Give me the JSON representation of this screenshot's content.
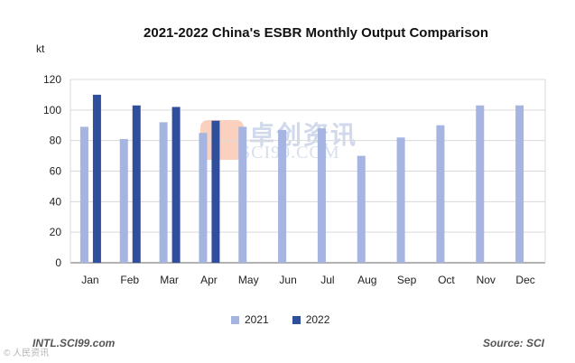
{
  "chart_data": {
    "type": "bar",
    "title": "2021-2022  China's ESBR Monthly Output Comparison",
    "ylabel": "kt",
    "xlabel": "",
    "categories": [
      "Jan",
      "Feb",
      "Mar",
      "Apr",
      "May",
      "Jun",
      "Jul",
      "Aug",
      "Sep",
      "Oct",
      "Nov",
      "Dec"
    ],
    "ylim": [
      0,
      120
    ],
    "yticks": [
      0,
      20,
      40,
      60,
      80,
      100,
      120
    ],
    "grid": true,
    "legend_position": "bottom",
    "series": [
      {
        "name": "2021",
        "color": "#a5b4e0",
        "values": [
          89,
          81,
          92,
          85,
          89,
          87,
          88,
          70,
          82,
          90,
          103,
          103
        ]
      },
      {
        "name": "2022",
        "color": "#2f4f9c",
        "values": [
          110,
          103,
          102,
          93,
          null,
          null,
          null,
          null,
          null,
          null,
          null,
          null
        ]
      }
    ]
  },
  "footer": {
    "left": "INTL.SCI99.com",
    "right": "Source: SCI"
  },
  "watermark": {
    "cn": "卓创资讯",
    "en": "SCI99.COM",
    "corner": "© 人民资讯"
  }
}
